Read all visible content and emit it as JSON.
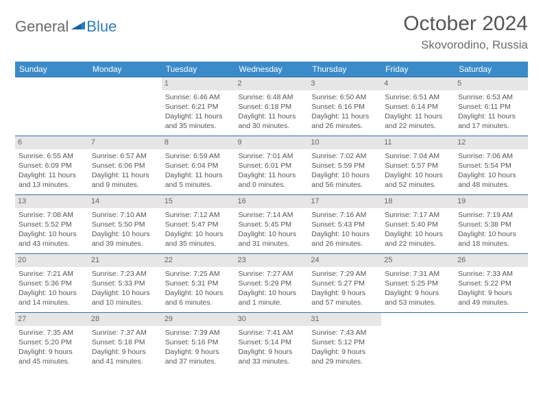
{
  "logo": {
    "text1": "General",
    "text2": "Blue"
  },
  "title": "October 2024",
  "location": "Skovorodino, Russia",
  "colors": {
    "header_bg": "#3b8bc9",
    "header_text": "#ffffff",
    "row_border": "#2f6fa8",
    "daynum_bg": "#e6e6e6",
    "body_text": "#555555",
    "logo_gray": "#696969",
    "logo_blue": "#2d7cc0"
  },
  "dow": [
    "Sunday",
    "Monday",
    "Tuesday",
    "Wednesday",
    "Thursday",
    "Friday",
    "Saturday"
  ],
  "weeks": [
    [
      null,
      null,
      {
        "n": "1",
        "sr": "6:46 AM",
        "ss": "6:21 PM",
        "dl": "11 hours and 35 minutes."
      },
      {
        "n": "2",
        "sr": "6:48 AM",
        "ss": "6:18 PM",
        "dl": "11 hours and 30 minutes."
      },
      {
        "n": "3",
        "sr": "6:50 AM",
        "ss": "6:16 PM",
        "dl": "11 hours and 26 minutes."
      },
      {
        "n": "4",
        "sr": "6:51 AM",
        "ss": "6:14 PM",
        "dl": "11 hours and 22 minutes."
      },
      {
        "n": "5",
        "sr": "6:53 AM",
        "ss": "6:11 PM",
        "dl": "11 hours and 17 minutes."
      }
    ],
    [
      {
        "n": "6",
        "sr": "6:55 AM",
        "ss": "6:09 PM",
        "dl": "11 hours and 13 minutes."
      },
      {
        "n": "7",
        "sr": "6:57 AM",
        "ss": "6:06 PM",
        "dl": "11 hours and 9 minutes."
      },
      {
        "n": "8",
        "sr": "6:59 AM",
        "ss": "6:04 PM",
        "dl": "11 hours and 5 minutes."
      },
      {
        "n": "9",
        "sr": "7:01 AM",
        "ss": "6:01 PM",
        "dl": "11 hours and 0 minutes."
      },
      {
        "n": "10",
        "sr": "7:02 AM",
        "ss": "5:59 PM",
        "dl": "10 hours and 56 minutes."
      },
      {
        "n": "11",
        "sr": "7:04 AM",
        "ss": "5:57 PM",
        "dl": "10 hours and 52 minutes."
      },
      {
        "n": "12",
        "sr": "7:06 AM",
        "ss": "5:54 PM",
        "dl": "10 hours and 48 minutes."
      }
    ],
    [
      {
        "n": "13",
        "sr": "7:08 AM",
        "ss": "5:52 PM",
        "dl": "10 hours and 43 minutes."
      },
      {
        "n": "14",
        "sr": "7:10 AM",
        "ss": "5:50 PM",
        "dl": "10 hours and 39 minutes."
      },
      {
        "n": "15",
        "sr": "7:12 AM",
        "ss": "5:47 PM",
        "dl": "10 hours and 35 minutes."
      },
      {
        "n": "16",
        "sr": "7:14 AM",
        "ss": "5:45 PM",
        "dl": "10 hours and 31 minutes."
      },
      {
        "n": "17",
        "sr": "7:16 AM",
        "ss": "5:43 PM",
        "dl": "10 hours and 26 minutes."
      },
      {
        "n": "18",
        "sr": "7:17 AM",
        "ss": "5:40 PM",
        "dl": "10 hours and 22 minutes."
      },
      {
        "n": "19",
        "sr": "7:19 AM",
        "ss": "5:38 PM",
        "dl": "10 hours and 18 minutes."
      }
    ],
    [
      {
        "n": "20",
        "sr": "7:21 AM",
        "ss": "5:36 PM",
        "dl": "10 hours and 14 minutes."
      },
      {
        "n": "21",
        "sr": "7:23 AM",
        "ss": "5:33 PM",
        "dl": "10 hours and 10 minutes."
      },
      {
        "n": "22",
        "sr": "7:25 AM",
        "ss": "5:31 PM",
        "dl": "10 hours and 6 minutes."
      },
      {
        "n": "23",
        "sr": "7:27 AM",
        "ss": "5:29 PM",
        "dl": "10 hours and 1 minute."
      },
      {
        "n": "24",
        "sr": "7:29 AM",
        "ss": "5:27 PM",
        "dl": "9 hours and 57 minutes."
      },
      {
        "n": "25",
        "sr": "7:31 AM",
        "ss": "5:25 PM",
        "dl": "9 hours and 53 minutes."
      },
      {
        "n": "26",
        "sr": "7:33 AM",
        "ss": "5:22 PM",
        "dl": "9 hours and 49 minutes."
      }
    ],
    [
      {
        "n": "27",
        "sr": "7:35 AM",
        "ss": "5:20 PM",
        "dl": "9 hours and 45 minutes."
      },
      {
        "n": "28",
        "sr": "7:37 AM",
        "ss": "5:18 PM",
        "dl": "9 hours and 41 minutes."
      },
      {
        "n": "29",
        "sr": "7:39 AM",
        "ss": "5:16 PM",
        "dl": "9 hours and 37 minutes."
      },
      {
        "n": "30",
        "sr": "7:41 AM",
        "ss": "5:14 PM",
        "dl": "9 hours and 33 minutes."
      },
      {
        "n": "31",
        "sr": "7:43 AM",
        "ss": "5:12 PM",
        "dl": "9 hours and 29 minutes."
      },
      null,
      null
    ]
  ],
  "labels": {
    "sunrise": "Sunrise:",
    "sunset": "Sunset:",
    "daylight": "Daylight:"
  }
}
